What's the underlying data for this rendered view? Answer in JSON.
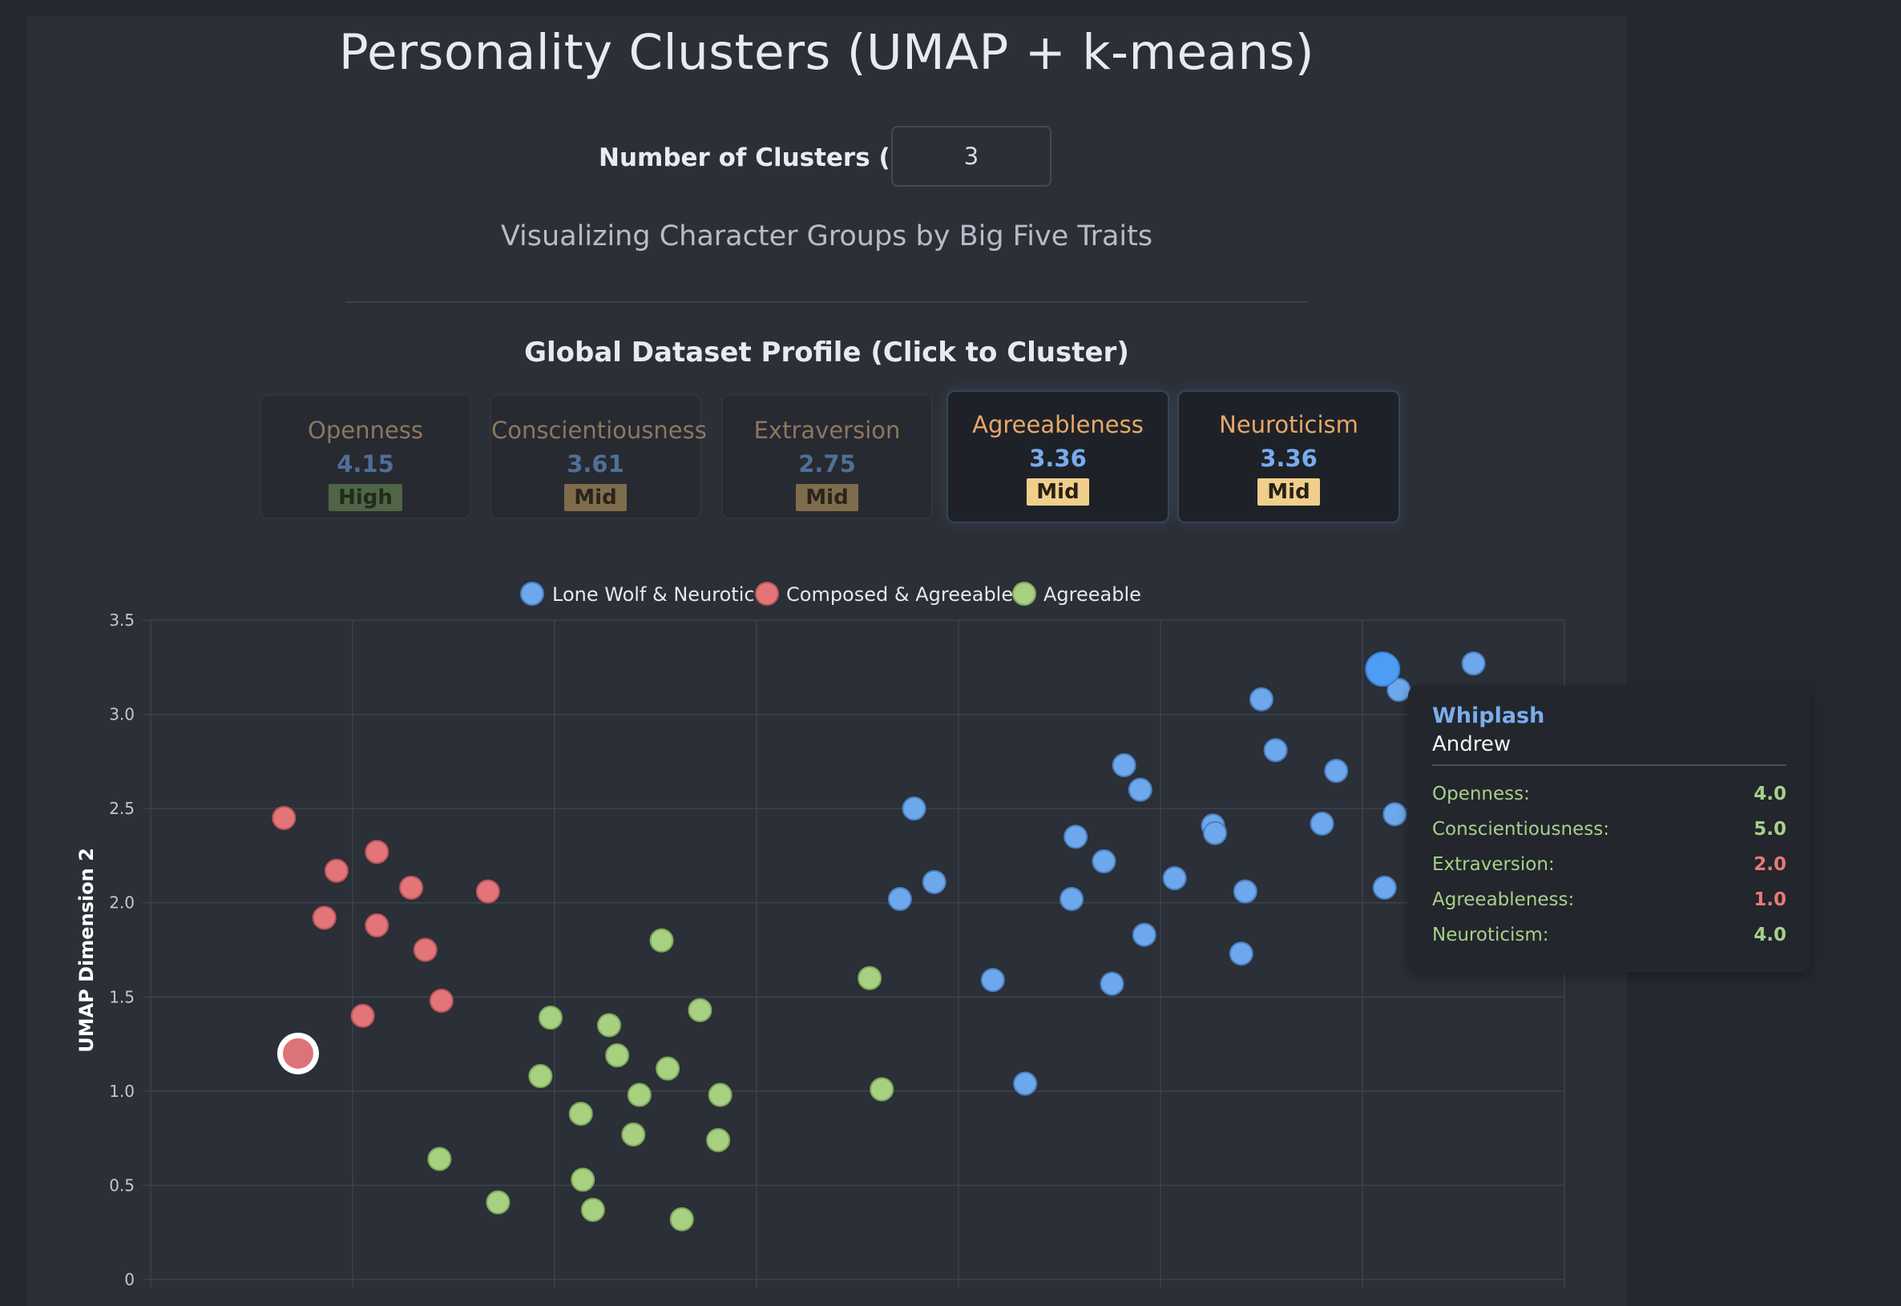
{
  "header": {
    "title": "Personality Clusters (UMAP + k-means)",
    "k_label": "Number of Clusters (k):",
    "k_value": "3",
    "subtitle": "Visualizing Character Groups by Big Five Traits"
  },
  "profile": {
    "heading": "Global Dataset Profile (Click to Cluster)",
    "cards": [
      {
        "name": "Openness",
        "value": "4.15",
        "level": "High",
        "state": "dim"
      },
      {
        "name": "Conscientiousness",
        "value": "3.61",
        "level": "Mid",
        "state": "dim"
      },
      {
        "name": "Extraversion",
        "value": "2.75",
        "level": "Mid",
        "state": "dim"
      },
      {
        "name": "Agreeableness",
        "value": "3.36",
        "level": "Mid",
        "state": "active"
      },
      {
        "name": "Neuroticism",
        "value": "3.36",
        "level": "Mid",
        "state": "active"
      }
    ]
  },
  "colors": {
    "lone_wolf": "#6ea8ec",
    "composed": "#e37579",
    "agreeable": "#a7d180"
  },
  "chart_data": {
    "type": "scatter",
    "xlabel": "",
    "ylabel": "UMAP Dimension 2",
    "ylim": [
      0,
      3.5
    ],
    "xlim": [
      0,
      7
    ],
    "y_ticks": [
      "0",
      "0.5",
      "1.0",
      "1.5",
      "2.0",
      "2.5",
      "3.0",
      "3.5"
    ],
    "grid": true,
    "legend_position": "top",
    "series": [
      {
        "name": "Lone Wolf & Neurotic",
        "color": "#6ea8ec",
        "points": [
          [
            3.78,
            2.5
          ],
          [
            3.71,
            2.02
          ],
          [
            3.88,
            2.11
          ],
          [
            4.17,
            1.59
          ],
          [
            4.33,
            1.04
          ],
          [
            4.56,
            2.02
          ],
          [
            4.58,
            2.35
          ],
          [
            4.72,
            2.22
          ],
          [
            4.76,
            1.57
          ],
          [
            4.82,
            2.73
          ],
          [
            4.9,
            2.6
          ],
          [
            4.92,
            1.83
          ],
          [
            5.07,
            2.13
          ],
          [
            5.26,
            2.41
          ],
          [
            5.27,
            2.37
          ],
          [
            5.4,
            1.73
          ],
          [
            5.42,
            2.06
          ],
          [
            5.5,
            3.08
          ],
          [
            5.57,
            2.81
          ],
          [
            5.8,
            2.42
          ],
          [
            5.87,
            2.7
          ],
          [
            6.11,
            2.08
          ],
          [
            6.16,
            2.47
          ],
          [
            6.18,
            3.13
          ],
          [
            6.55,
            3.27
          ]
        ],
        "highlighted": [
          6.1,
          3.24
        ]
      },
      {
        "name": "Composed & Agreeable",
        "color": "#e37579",
        "points": [
          [
            0.66,
            2.45
          ],
          [
            0.86,
            1.92
          ],
          [
            0.92,
            2.17
          ],
          [
            1.05,
            1.4
          ],
          [
            1.12,
            1.88
          ],
          [
            1.12,
            2.27
          ],
          [
            1.29,
            2.08
          ],
          [
            1.36,
            1.75
          ],
          [
            1.44,
            1.48
          ],
          [
            1.67,
            2.06
          ]
        ],
        "highlighted": [
          0.73,
          1.2
        ]
      },
      {
        "name": "Agreeable",
        "color": "#a7d180",
        "points": [
          [
            1.43,
            0.64
          ],
          [
            1.72,
            0.41
          ],
          [
            1.93,
            1.08
          ],
          [
            1.98,
            1.39
          ],
          [
            2.13,
            0.88
          ],
          [
            2.14,
            0.53
          ],
          [
            2.19,
            0.37
          ],
          [
            2.27,
            1.35
          ],
          [
            2.31,
            1.19
          ],
          [
            2.39,
            0.77
          ],
          [
            2.42,
            0.98
          ],
          [
            2.53,
            1.8
          ],
          [
            2.56,
            1.12
          ],
          [
            2.63,
            0.32
          ],
          [
            2.72,
            1.43
          ],
          [
            2.81,
            0.74
          ],
          [
            2.82,
            0.98
          ],
          [
            3.56,
            1.6
          ],
          [
            3.62,
            1.01
          ]
        ]
      }
    ]
  },
  "tooltip": {
    "title": "Whiplash",
    "subtitle": "Andrew",
    "rows": [
      {
        "label": "Openness:",
        "value": "4.0"
      },
      {
        "label": "Conscientiousness:",
        "value": "5.0"
      },
      {
        "label": "Extraversion:",
        "value": "2.0"
      },
      {
        "label": "Agreeableness:",
        "value": "1.0"
      },
      {
        "label": "Neuroticism:",
        "value": "4.0"
      }
    ]
  }
}
